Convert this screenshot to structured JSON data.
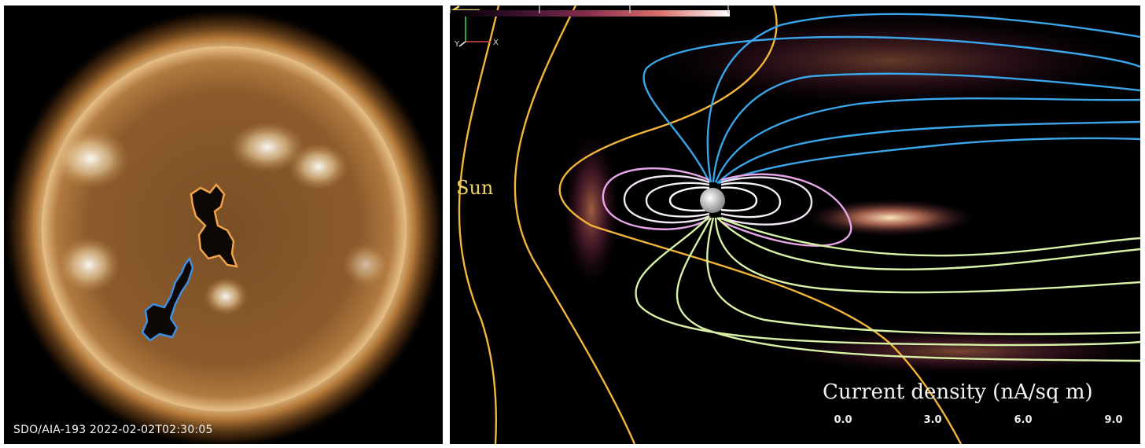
{
  "left_panel": {
    "caption": "SDO/AIA-193 2022-02-02T02:30:05",
    "colors": {
      "sun_disk": "#8a5a2a",
      "limb": "#f3d7a6",
      "orange_contour": "#f2a24a",
      "blue_contour": "#3f8fe0"
    }
  },
  "right_panel": {
    "sun_label": "Sun",
    "axes": {
      "z": "Z",
      "y": "Y",
      "x": "X"
    },
    "colorbar": {
      "title": "Current density (nA/sq m)",
      "ticks": [
        "0.0",
        "3.0",
        "6.0",
        "9.0"
      ],
      "range": [
        0,
        9
      ],
      "colors": [
        "#000000",
        "#3a1030",
        "#8a2f50",
        "#d8706a",
        "#ffffff"
      ]
    },
    "colors": {
      "interplanetary_field": "#f3b63a",
      "open_north_field": "#3aa5e8",
      "closed_field": "#e7a6e8",
      "open_south_field": "#d8f3a8"
    }
  }
}
